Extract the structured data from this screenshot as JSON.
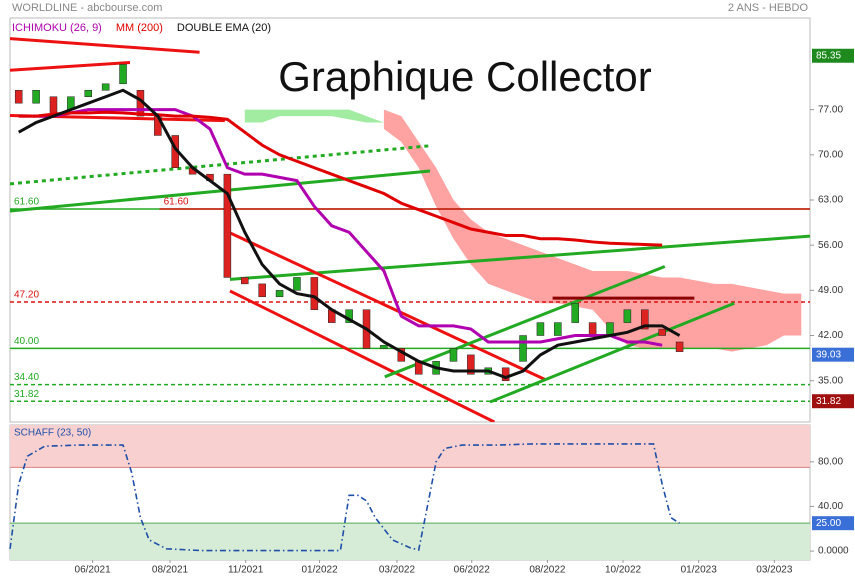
{
  "chart_data": {
    "type": "candlestick",
    "header_left": "WORLDLINE - abcbourse.com",
    "header_right": "2 ANS - HEBDO",
    "title": "Graphique Collector",
    "xlim": [
      0,
      92
    ],
    "xticks": [
      {
        "value": 9.5,
        "label": "06/2021"
      },
      {
        "value": 18.4,
        "label": "08/2021"
      },
      {
        "value": 27.1,
        "label": "11/2021"
      },
      {
        "value": 35.6,
        "label": "01/2022"
      },
      {
        "value": 44.5,
        "label": "03/2022"
      },
      {
        "value": 53.1,
        "label": "06/2022"
      },
      {
        "value": 61.8,
        "label": "08/2022"
      },
      {
        "value": 70.5,
        "label": "10/2022"
      },
      {
        "value": 79.2,
        "label": "01/2023"
      },
      {
        "value": 87.9,
        "label": "03/2023"
      }
    ],
    "ylim": [
      28.6,
      91.2
    ],
    "yticks": [
      {
        "value": 77,
        "label": "77.00"
      },
      {
        "value": 70,
        "label": "70.00"
      },
      {
        "value": 63,
        "label": "63.00"
      },
      {
        "value": 56,
        "label": "56.00"
      },
      {
        "value": 49,
        "label": "49.00"
      },
      {
        "value": 42,
        "label": "42.00"
      },
      {
        "value": 35,
        "label": "35.00"
      }
    ],
    "candles": {
      "up_color": "#22aa22",
      "down_color": "#dd2222",
      "x": [
        1,
        3,
        5,
        7,
        9,
        11,
        13,
        15,
        17,
        19,
        21,
        23,
        25,
        27,
        29,
        31,
        33,
        35,
        37,
        39,
        41,
        43,
        45,
        47,
        49,
        51,
        53,
        55,
        57,
        59,
        61,
        63,
        65,
        67,
        69,
        71,
        73,
        75,
        77
      ],
      "open": [
        80,
        78,
        79,
        77,
        79,
        80,
        81,
        80,
        76,
        73,
        68,
        67,
        67,
        51,
        50,
        48,
        49,
        51,
        46,
        44,
        46,
        40,
        40,
        38,
        36,
        38,
        39,
        36,
        37,
        38,
        42,
        42,
        44,
        44,
        42,
        44,
        46,
        43,
        41
      ],
      "close": [
        78,
        80,
        76,
        79,
        80,
        81,
        84,
        76,
        73,
        68,
        67,
        66,
        51,
        50,
        48,
        49,
        51,
        46,
        44,
        46,
        40,
        40.5,
        38,
        36,
        38,
        40,
        36,
        37,
        35,
        42,
        44,
        44,
        47,
        42,
        44,
        46,
        43,
        42,
        39.5
      ]
    },
    "series": [
      {
        "name": "ICHIMOKU (26, 9)",
        "color": "#b000b0",
        "values": [
          76,
          76,
          76,
          76.5,
          77,
          77,
          77,
          77,
          77,
          77,
          76,
          74,
          68,
          67,
          67,
          66.5,
          66,
          62,
          59,
          58,
          55,
          52,
          45,
          43.5,
          43.5,
          43.5,
          43,
          41,
          41,
          41,
          41,
          41.5,
          42,
          42,
          42,
          41,
          41,
          40.5,
          null
        ]
      },
      {
        "name": "MM (200)",
        "color": "#e00000",
        "values": [
          76,
          76,
          76.3,
          76.5,
          76.5,
          76.6,
          76.5,
          76.3,
          76.2,
          76,
          76,
          75.8,
          75.5,
          73.5,
          71.5,
          70,
          69,
          68,
          67,
          66,
          65,
          64,
          62.5,
          61.5,
          60.5,
          59.5,
          58.5,
          58,
          57.5,
          57.5,
          57,
          57,
          56.8,
          56.5,
          56.3,
          56.2,
          56.1,
          56,
          null
        ]
      },
      {
        "name": "DOUBLE EMA (20)",
        "color": "#111111",
        "values": [
          73.5,
          75,
          76,
          77,
          78,
          79,
          80,
          78.5,
          76,
          71,
          68,
          66,
          64,
          58,
          53,
          50,
          48.5,
          48,
          46,
          44.5,
          43,
          41,
          39.5,
          38,
          37,
          36.5,
          36.5,
          36.5,
          35.5,
          36.5,
          39,
          40.5,
          41,
          41.5,
          42,
          42.5,
          43.5,
          43.5,
          42
        ]
      }
    ],
    "clouds": [
      {
        "color": "#ff5555",
        "x": [
          43,
          45,
          47,
          49,
          51,
          53,
          55,
          57,
          59,
          61,
          63,
          65,
          67,
          69,
          71,
          73,
          75,
          77,
          79,
          81,
          83,
          85,
          87,
          89,
          91
        ],
        "upper": [
          77,
          76,
          72,
          68,
          63,
          60,
          58,
          57,
          56,
          55,
          54,
          53,
          52,
          52,
          52,
          51.5,
          51,
          51,
          50.5,
          50,
          50,
          49.5,
          49,
          48.5,
          48.5
        ],
        "lower": [
          74,
          72,
          68,
          62,
          57,
          53,
          50,
          49,
          48,
          47,
          47,
          46.5,
          46,
          43,
          40.5,
          40,
          40,
          40,
          40,
          40,
          39.5,
          40,
          40.5,
          42,
          42
        ]
      },
      {
        "color": "#55dd55",
        "x": [
          27,
          29,
          31,
          33,
          35,
          37,
          39,
          41,
          43
        ],
        "upper": [
          77,
          77,
          77,
          77,
          77,
          77,
          77,
          76,
          75
        ],
        "lower": [
          75,
          75,
          76,
          76,
          76,
          76,
          75.5,
          75,
          75
        ]
      }
    ],
    "trendlines": [
      {
        "color": "#ee1111",
        "x": [
          0,
          21.8
        ],
        "values": [
          88.0,
          85.9
        ]
      },
      {
        "color": "#ee1111",
        "x": [
          0,
          13.8
        ],
        "values": [
          83.1,
          84.3
        ]
      },
      {
        "color": "#ee1111",
        "x": [
          0,
          24.7
        ],
        "values": [
          76.1,
          75.3
        ]
      },
      {
        "color": "#22aa22",
        "dashed": true,
        "x": [
          0,
          48.3
        ],
        "values": [
          65.5,
          71.4
        ]
      },
      {
        "color": "#22aa22",
        "x": [
          0,
          48.3
        ],
        "values": [
          61.3,
          67.5
        ]
      },
      {
        "color": "#22aa22",
        "x": [
          25.3,
          92
        ],
        "values": [
          50.7,
          57.4
        ]
      },
      {
        "color": "#ee1111",
        "x": [
          25.3,
          61.5
        ],
        "values": [
          57.9,
          35.2
        ]
      },
      {
        "color": "#ee1111",
        "x": [
          25.3,
          55.7
        ],
        "values": [
          48.9,
          28.6
        ]
      },
      {
        "color": "#22aa22",
        "x": [
          43.1,
          75.3
        ],
        "values": [
          35.6,
          52.7
        ]
      },
      {
        "color": "#22aa22",
        "x": [
          55.2,
          83.3
        ],
        "values": [
          31.7,
          47.0
        ]
      },
      {
        "color": "#8b0000",
        "x": [
          62.4,
          78.7
        ],
        "values": [
          47.8,
          47.8
        ]
      }
    ],
    "levels": [
      {
        "value": 61.6,
        "label": "61.60",
        "color": "#22aa22",
        "x": 0
      },
      {
        "value": 61.6,
        "label": "61.60",
        "color": "#dd1111",
        "x": 17.2
      },
      {
        "value": 47.2,
        "label": "47.20",
        "color": "#dd1111",
        "x": 0,
        "dashed": true
      },
      {
        "value": 40,
        "label": "40.00",
        "color": "#22aa22",
        "x": 0
      },
      {
        "value": 34.4,
        "label": "34.40",
        "color": "#22aa22",
        "x": 0,
        "dashed": true
      },
      {
        "value": 31.82,
        "label": "31.82",
        "color": "#22aa22",
        "x": 0,
        "dashed": true
      }
    ],
    "tags": [
      {
        "value": 85.35,
        "color": "#1e8a1e"
      },
      {
        "value": 39.03,
        "color": "#3b6fd8"
      },
      {
        "value": 31.82,
        "color": "#a01010"
      }
    ],
    "schaff": {
      "name": "SCHAFF (23, 50)",
      "color": "#1f4fa8",
      "ylim": [
        -8,
        113
      ],
      "yticks": [
        {
          "value": 80,
          "label": "80.00"
        },
        {
          "value": 40,
          "label": "40.00"
        },
        {
          "value": 0,
          "label": "0.0000"
        }
      ],
      "overbought": 75,
      "tag": {
        "value": 25,
        "label": "25.00",
        "color": "#3b6fd8"
      },
      "x": [
        0,
        1,
        2,
        4,
        8,
        13,
        14,
        15,
        16,
        18,
        22,
        30,
        38,
        39,
        40,
        41,
        42,
        44,
        46,
        47,
        48,
        49,
        50,
        52,
        56,
        60,
        74,
        75,
        76,
        77
      ],
      "values": [
        2,
        60,
        85,
        94,
        95,
        95,
        70,
        30,
        10,
        2,
        0.5,
        0.5,
        0.5,
        50,
        50,
        45,
        30,
        10,
        3,
        1,
        40,
        80,
        92,
        95,
        95,
        96,
        96,
        60,
        30,
        25
      ]
    }
  }
}
